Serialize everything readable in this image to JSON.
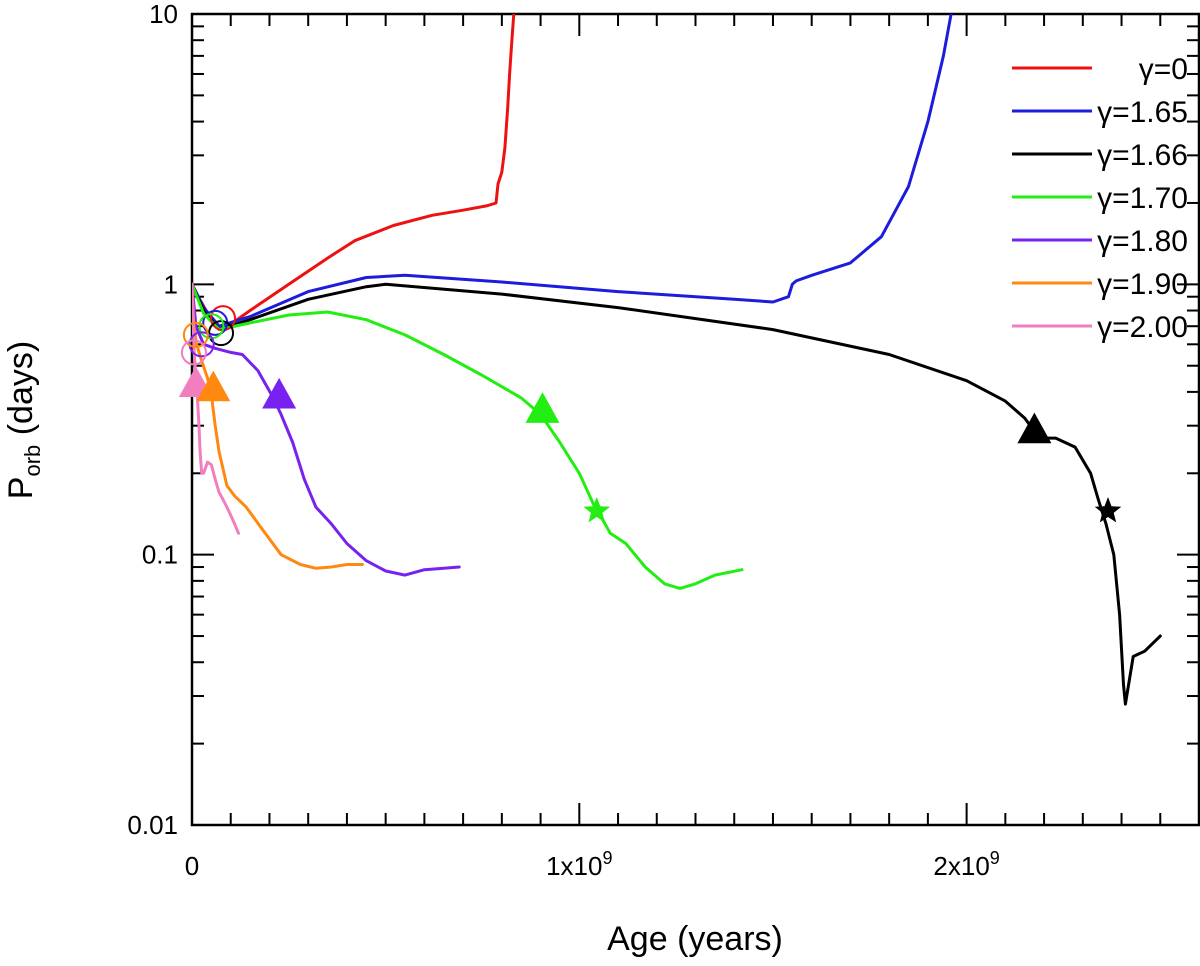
{
  "chart_data": {
    "type": "line",
    "xlabel": "Age (years)",
    "ylabel_main": "P",
    "ylabel_sub": "orb",
    "ylabel_rest": " (days)",
    "xlim": [
      0,
      2600000000
    ],
    "ylim": [
      0.01,
      10
    ],
    "yscale": "log",
    "grid": false,
    "legend_position": "top-right",
    "xticks": [
      {
        "value": 0,
        "base": "0",
        "exp": ""
      },
      {
        "value": 1000000000,
        "base": "1x10",
        "exp": "9"
      },
      {
        "value": 2000000000,
        "base": "2x10",
        "exp": "9"
      }
    ],
    "yticks": [
      {
        "value": 10,
        "label": "10"
      },
      {
        "value": 1,
        "label": "1"
      },
      {
        "value": 0.1,
        "label": "0.1"
      },
      {
        "value": 0.01,
        "label": "0.01"
      }
    ],
    "series": [
      {
        "name": "γ=0",
        "color": "#ee1111",
        "x": [
          0,
          20000000,
          50000000,
          80000000,
          150000000,
          250000000,
          350000000,
          420000000,
          520000000,
          620000000,
          700000000,
          760000000,
          785000000,
          790000000,
          800000000,
          808000000,
          815000000,
          820000000,
          826000000,
          832000000,
          850000000
        ],
        "y": [
          1.0,
          0.88,
          0.74,
          0.68,
          0.8,
          1.0,
          1.25,
          1.45,
          1.65,
          1.8,
          1.88,
          1.95,
          2.0,
          2.35,
          2.6,
          3.2,
          4.5,
          6.0,
          8.0,
          10.5,
          12.0
        ],
        "start_marker": {
          "x": 80000000,
          "y": 0.75
        }
      },
      {
        "name": "γ=1.65",
        "color": "#1c1cdd",
        "x": [
          0,
          30000000,
          70000000,
          150000000,
          300000000,
          450000000,
          550000000,
          800000000,
          1100000000,
          1400000000,
          1500000000,
          1540000000,
          1550000000,
          1560000000,
          1600000000,
          1700000000,
          1780000000,
          1850000000,
          1900000000,
          1940000000,
          1960000000,
          1970000000
        ],
        "y": [
          1.0,
          0.82,
          0.7,
          0.76,
          0.94,
          1.06,
          1.08,
          1.02,
          0.94,
          0.88,
          0.86,
          0.9,
          1.0,
          1.03,
          1.08,
          1.2,
          1.5,
          2.3,
          4.0,
          7.0,
          10.0,
          12.0
        ],
        "start_marker": {
          "x": 60000000,
          "y": 0.72
        }
      },
      {
        "name": "γ=1.66",
        "color": "#000000",
        "x": [
          0,
          30000000,
          70000000,
          150000000,
          300000000,
          450000000,
          500000000,
          800000000,
          1100000000,
          1500000000,
          1800000000,
          2000000000,
          2100000000,
          2150000000,
          2180000000,
          2200000000,
          2230000000,
          2280000000,
          2320000000,
          2340000000,
          2360000000,
          2380000000,
          2395000000,
          2405000000,
          2410000000,
          2430000000,
          2460000000,
          2500000000
        ],
        "y": [
          1.0,
          0.8,
          0.68,
          0.74,
          0.88,
          0.98,
          1.0,
          0.92,
          0.82,
          0.68,
          0.55,
          0.44,
          0.37,
          0.32,
          0.28,
          0.27,
          0.27,
          0.25,
          0.2,
          0.16,
          0.13,
          0.1,
          0.06,
          0.033,
          0.028,
          0.042,
          0.044,
          0.05
        ],
        "start_marker": {
          "x": 75000000,
          "y": 0.66
        }
      },
      {
        "name": "γ=1.70",
        "color": "#22ee11",
        "x": [
          0,
          30000000,
          70000000,
          150000000,
          250000000,
          350000000,
          450000000,
          550000000,
          650000000,
          750000000,
          850000000,
          900000000,
          950000000,
          1000000000,
          1040000000,
          1060000000,
          1080000000,
          1120000000,
          1170000000,
          1220000000,
          1260000000,
          1300000000,
          1350000000,
          1420000000
        ],
        "y": [
          1.0,
          0.78,
          0.68,
          0.72,
          0.77,
          0.79,
          0.74,
          0.65,
          0.55,
          0.46,
          0.38,
          0.33,
          0.26,
          0.2,
          0.15,
          0.135,
          0.12,
          0.11,
          0.09,
          0.078,
          0.075,
          0.078,
          0.084,
          0.088
        ],
        "start_marker": {
          "x": 50000000,
          "y": 0.7
        }
      },
      {
        "name": "γ=1.80",
        "color": "#7722ee",
        "x": [
          0,
          10000000,
          30000000,
          60000000,
          100000000,
          130000000,
          170000000,
          210000000,
          230000000,
          260000000,
          290000000,
          320000000,
          360000000,
          400000000,
          450000000,
          500000000,
          550000000,
          600000000,
          650000000,
          690000000
        ],
        "y": [
          1.0,
          0.7,
          0.6,
          0.58,
          0.56,
          0.55,
          0.48,
          0.38,
          0.33,
          0.26,
          0.19,
          0.15,
          0.13,
          0.11,
          0.095,
          0.087,
          0.084,
          0.088,
          0.089,
          0.09
        ],
        "start_marker": {
          "x": 25000000,
          "y": 0.6
        }
      },
      {
        "name": "γ=1.90",
        "color": "#ff8811",
        "x": [
          0,
          5000000,
          12000000,
          25000000,
          40000000,
          50000000,
          60000000,
          70000000,
          90000000,
          110000000,
          140000000,
          180000000,
          230000000,
          280000000,
          320000000,
          360000000,
          400000000,
          440000000
        ],
        "y": [
          1.0,
          0.7,
          0.6,
          0.52,
          0.45,
          0.39,
          0.3,
          0.24,
          0.18,
          0.165,
          0.15,
          0.125,
          0.1,
          0.092,
          0.089,
          0.09,
          0.092,
          0.092
        ],
        "start_marker": {
          "x": 10000000,
          "y": 0.65
        }
      },
      {
        "name": "γ=2.00",
        "color": "#f27ec0",
        "x": [
          0,
          3000000,
          6000000,
          10000000,
          14000000,
          18000000,
          21000000,
          25000000,
          30000000,
          40000000,
          50000000,
          60000000,
          70000000,
          80000000,
          90000000,
          100000000,
          110000000,
          120000000
        ],
        "y": [
          1.0,
          0.7,
          0.55,
          0.45,
          0.38,
          0.3,
          0.24,
          0.2,
          0.2,
          0.22,
          0.215,
          0.19,
          0.17,
          0.16,
          0.15,
          0.14,
          0.13,
          0.12
        ],
        "start_marker": {
          "x": 5000000,
          "y": 0.56
        }
      }
    ],
    "triangle_markers": [
      {
        "series": "γ=2.00",
        "x": 10000000,
        "y": 0.43
      },
      {
        "series": "γ=1.90",
        "x": 55000000,
        "y": 0.415
      },
      {
        "series": "γ=1.80",
        "x": 225000000,
        "y": 0.39
      },
      {
        "series": "γ=1.70",
        "x": 905000000,
        "y": 0.345
      },
      {
        "series": "γ=1.66",
        "x": 2175000000,
        "y": 0.29
      }
    ],
    "star_markers": [
      {
        "series": "γ=1.70",
        "x": 1045000000,
        "y": 0.145
      },
      {
        "series": "γ=1.66",
        "x": 2365000000,
        "y": 0.145
      }
    ]
  }
}
